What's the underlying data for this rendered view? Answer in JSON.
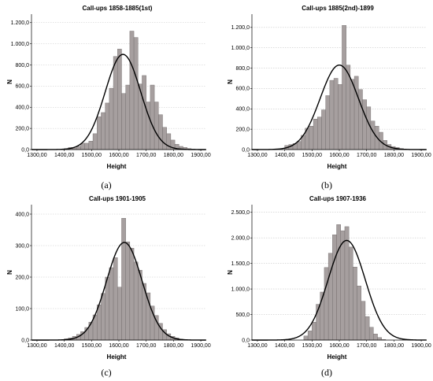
{
  "chart_data": [
    {
      "type": "bar",
      "caption": "(a)",
      "title": "Call-ups 1858-1885(1st)",
      "xlabel": "Height",
      "ylabel": "N",
      "xlim": [
        1280,
        1920
      ],
      "ylim": [
        0,
        1280
      ],
      "xticks": [
        1300,
        1400,
        1500,
        1600,
        1700,
        1800,
        1900
      ],
      "xtick_labels": [
        "1300,00",
        "1400,00",
        "1500,00",
        "1600,00",
        "1700,00",
        "1800,00",
        "1900,00"
      ],
      "yticks": [
        0,
        200,
        400,
        600,
        800,
        1000,
        1200
      ],
      "ytick_labels": [
        "0,0",
        "200,0",
        "400,0",
        "600,0",
        "800,0",
        "1.000,0",
        "1.200,0"
      ],
      "bin_start": 1400,
      "bin_width": 15,
      "values": [
        10,
        20,
        15,
        30,
        60,
        60,
        80,
        150,
        310,
        350,
        440,
        580,
        880,
        950,
        530,
        610,
        1120,
        1060,
        620,
        700,
        450,
        610,
        450,
        330,
        210,
        150,
        90,
        50,
        30,
        20,
        10,
        5
      ],
      "normal_curve": {
        "mean": 1615,
        "sd": 65,
        "peak": 900
      },
      "grid": true,
      "bar_color": "#a69f9f",
      "curve_color": "#000000"
    },
    {
      "type": "bar",
      "caption": "(b)",
      "title": "Call-ups 1885(2nd)-1899",
      "xlabel": "Height",
      "ylabel": "N",
      "xlim": [
        1280,
        1920
      ],
      "ylim": [
        0,
        1330
      ],
      "xticks": [
        1300,
        1400,
        1500,
        1600,
        1700,
        1800,
        1900
      ],
      "xtick_labels": [
        "1300,00",
        "1400,00",
        "1500,00",
        "1600,00",
        "1700,00",
        "1800,00",
        "1900,00"
      ],
      "yticks": [
        0,
        200,
        400,
        600,
        800,
        1000,
        1200
      ],
      "ytick_labels": [
        "0,0",
        "200,0",
        "400,0",
        "600,0",
        "800,0",
        "1.000,0",
        "1.200,0"
      ],
      "bin_start": 1400,
      "bin_width": 15,
      "values": [
        40,
        50,
        60,
        80,
        140,
        210,
        230,
        300,
        320,
        390,
        530,
        680,
        700,
        640,
        1220,
        830,
        690,
        720,
        590,
        490,
        420,
        280,
        230,
        170,
        90,
        50,
        30,
        20,
        10,
        5
      ],
      "normal_curve": {
        "mean": 1600,
        "sd": 70,
        "peak": 830
      },
      "grid": true,
      "bar_color": "#a69f9f",
      "curve_color": "#000000"
    },
    {
      "type": "bar",
      "caption": "(c)",
      "title": "Call-ups 1901-1905",
      "xlabel": "Height",
      "ylabel": "N",
      "xlim": [
        1280,
        1920
      ],
      "ylim": [
        0,
        430
      ],
      "xticks": [
        1300,
        1400,
        1500,
        1600,
        1700,
        1800,
        1900
      ],
      "xtick_labels": [
        "1300,00",
        "1400,00",
        "1500,00",
        "1600,00",
        "1700,00",
        "1800,00",
        "1900,00"
      ],
      "yticks": [
        0,
        100,
        200,
        300,
        400
      ],
      "ytick_labels": [
        "0,0",
        "100,0",
        "200,0",
        "300,0",
        "400,0"
      ],
      "bin_start": 1400,
      "bin_width": 15,
      "values": [
        4,
        7,
        12,
        18,
        27,
        40,
        57,
        80,
        112,
        148,
        200,
        230,
        262,
        168,
        387,
        312,
        292,
        248,
        222,
        180,
        150,
        108,
        78,
        53,
        33,
        20,
        12,
        7,
        3
      ],
      "normal_curve": {
        "mean": 1620,
        "sd": 65,
        "peak": 310
      },
      "grid": true,
      "bar_color": "#a69f9f",
      "curve_color": "#000000"
    },
    {
      "type": "bar",
      "caption": "(d)",
      "title": "Call-ups 1907-1936",
      "xlabel": "Height",
      "ylabel": "N",
      "xlim": [
        1280,
        1920
      ],
      "ylim": [
        0,
        2650
      ],
      "xticks": [
        1300,
        1400,
        1500,
        1600,
        1700,
        1800,
        1900
      ],
      "xtick_labels": [
        "1300,00",
        "1400,00",
        "1500,00",
        "1600,00",
        "1700,00",
        "1800,00",
        "1900,00"
      ],
      "yticks": [
        0,
        500,
        1000,
        1500,
        2000,
        2500
      ],
      "ytick_labels": [
        "0,0",
        "500,0",
        "1.000,0",
        "1.500,0",
        "2.000,0",
        "2.500,0"
      ],
      "bin_start": 1470,
      "bin_width": 15,
      "values": [
        80,
        180,
        350,
        700,
        940,
        1420,
        1700,
        2060,
        2260,
        2140,
        2220,
        1820,
        1430,
        1060,
        760,
        460,
        250,
        120,
        50,
        10
      ],
      "normal_curve": {
        "mean": 1627,
        "sd": 68,
        "peak": 1950
      },
      "grid": true,
      "bar_color": "#a69f9f",
      "curve_color": "#000000"
    }
  ]
}
